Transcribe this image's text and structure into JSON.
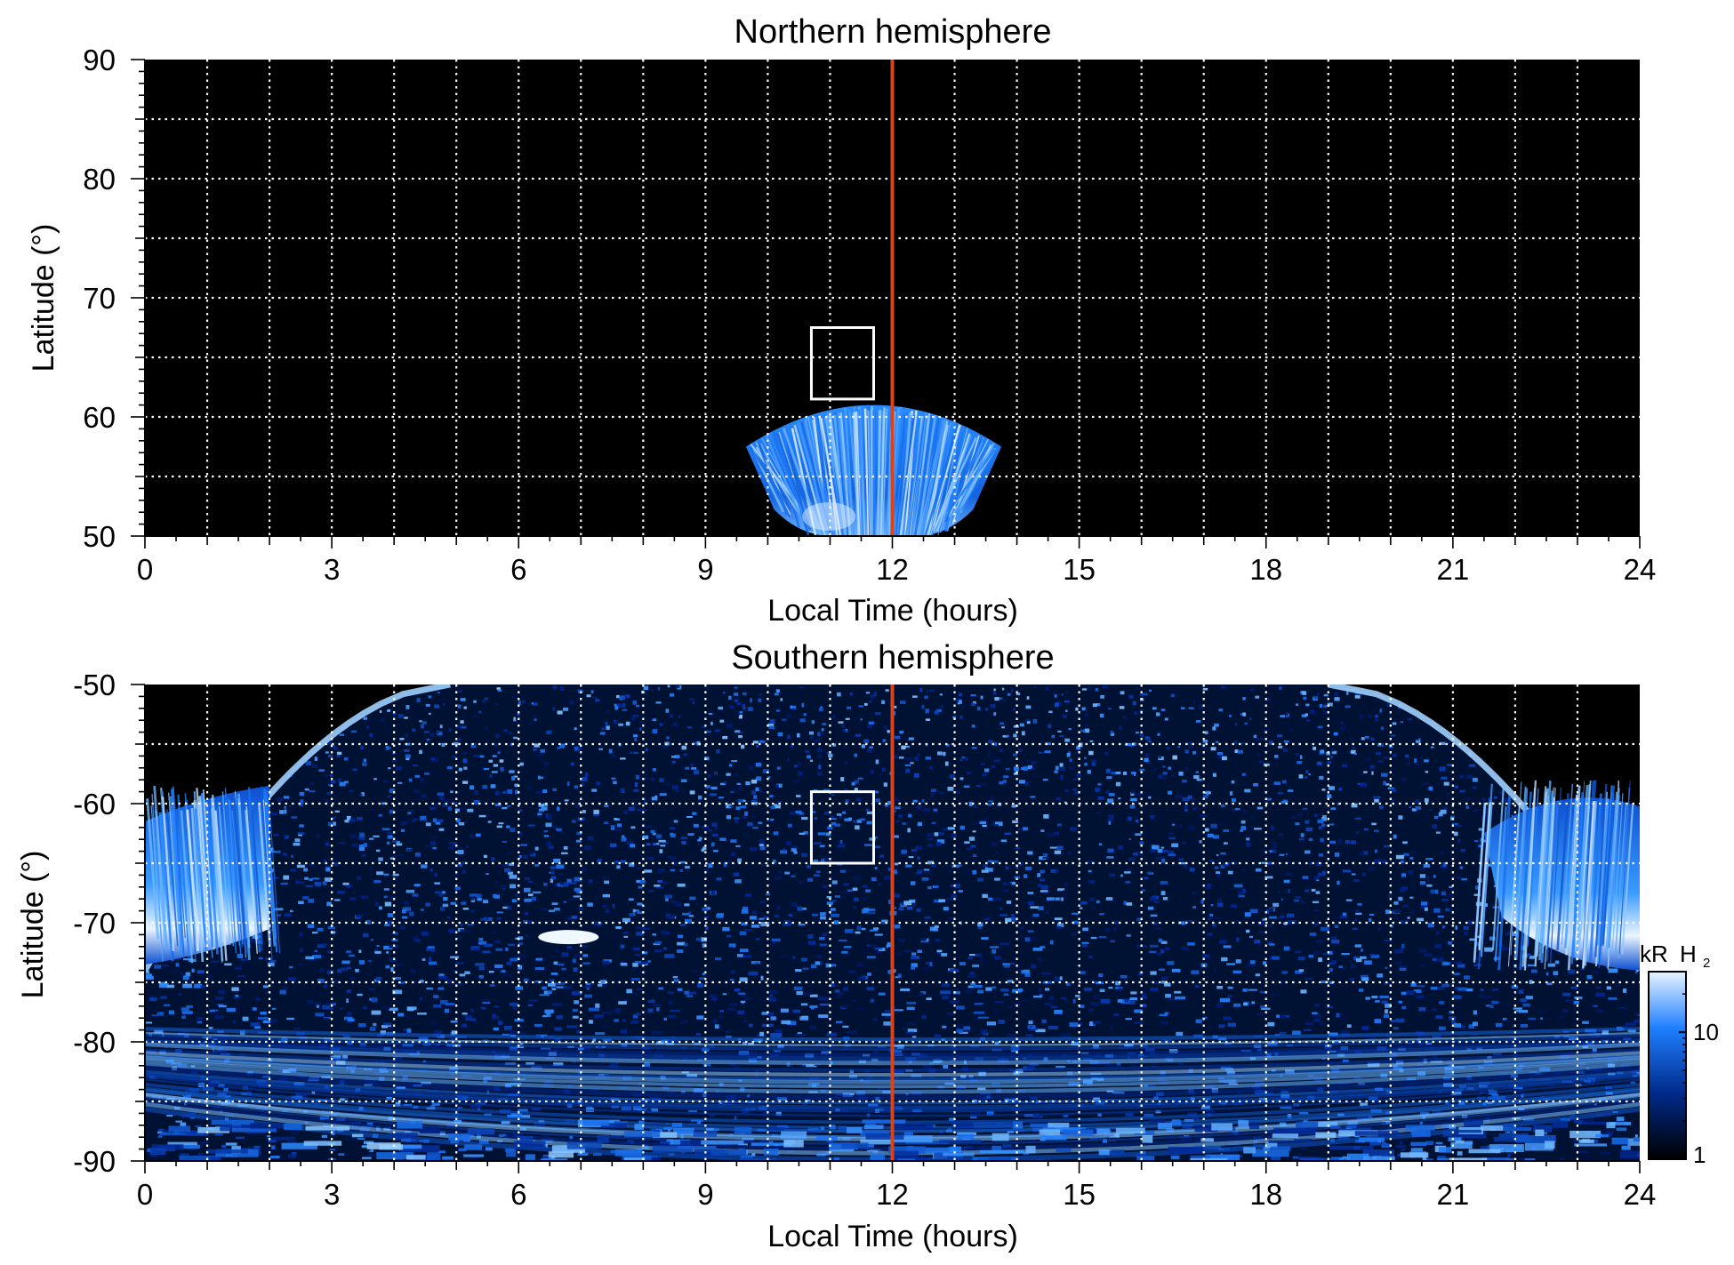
{
  "colors": {
    "background": "#000000",
    "emission_low": "#001a66",
    "emission_mid": "#1f7fff",
    "emission_high": "#dff0ff",
    "grid": "#ffffff",
    "noon_line": "#d8431c",
    "box": "#ffffff"
  },
  "chart_data": [
    {
      "type": "heatmap",
      "title": "Northern hemisphere",
      "xlabel": "Local Time (hours)",
      "ylabel": "Latitude (°)",
      "xlim": [
        0,
        24
      ],
      "ylim": [
        50,
        90
      ],
      "xticks": [
        "0",
        "3",
        "6",
        "9",
        "12",
        "15",
        "18",
        "21",
        "24"
      ],
      "yticks": [
        "50",
        "60",
        "70",
        "80",
        "90"
      ],
      "x_tick_values": [
        0,
        3,
        6,
        9,
        12,
        15,
        18,
        21,
        24
      ],
      "y_tick_values": [
        50,
        60,
        70,
        80,
        90
      ],
      "grid": true,
      "grid_x_step": 1,
      "grid_y_step": 5,
      "reference_line_x": 12,
      "box": {
        "x": [
          10.7,
          11.7
        ],
        "y": [
          61.5,
          67.5
        ]
      },
      "emission_regions": [
        {
          "shape": "fan",
          "x_center": 11.7,
          "x_halfwidth": 2.05,
          "y_base": 50,
          "y_top_center": 61,
          "y_top_edge": 57.5,
          "intensity": "medium-high"
        }
      ]
    },
    {
      "type": "heatmap",
      "title": "Southern hemisphere",
      "xlabel": "Local Time (hours)",
      "ylabel": "Latitude (°)",
      "xlim": [
        0,
        24
      ],
      "ylim": [
        -90,
        -50
      ],
      "xticks": [
        "0",
        "3",
        "6",
        "9",
        "12",
        "15",
        "18",
        "21",
        "24"
      ],
      "yticks": [
        "-90",
        "-80",
        "-70",
        "-60",
        "-50"
      ],
      "x_tick_values": [
        0,
        3,
        6,
        9,
        12,
        15,
        18,
        21,
        24
      ],
      "y_tick_values": [
        -90,
        -80,
        -70,
        -60,
        -50
      ],
      "grid": true,
      "grid_x_step": 1,
      "grid_y_step": 5,
      "reference_line_x": 12,
      "box": {
        "x": [
          10.7,
          11.7
        ],
        "y": [
          -65,
          -59
        ]
      },
      "emission_regions": [
        {
          "shape": "bowl",
          "x_left_top": 4.9,
          "x_right_top": 19.0,
          "y_top": -50,
          "y_bottom": -90,
          "intensity": "speckled"
        },
        {
          "shape": "patch",
          "x": [
            0,
            2.0
          ],
          "y": [
            -73.5,
            -58.5
          ],
          "intensity": "high"
        },
        {
          "shape": "patch",
          "x": [
            21.5,
            24
          ],
          "y": [
            -74,
            -58
          ],
          "intensity": "high"
        },
        {
          "shape": "blob",
          "x_center": 6.8,
          "y_center": -71.2,
          "intensity": "high"
        }
      ],
      "colorbar": {
        "label_main": "kR",
        "label_species": "H",
        "label_subscript": "2",
        "scale": "log",
        "range": [
          1,
          30
        ],
        "ticks": [
          "1",
          "10"
        ],
        "tick_values": [
          1,
          10
        ]
      }
    }
  ]
}
